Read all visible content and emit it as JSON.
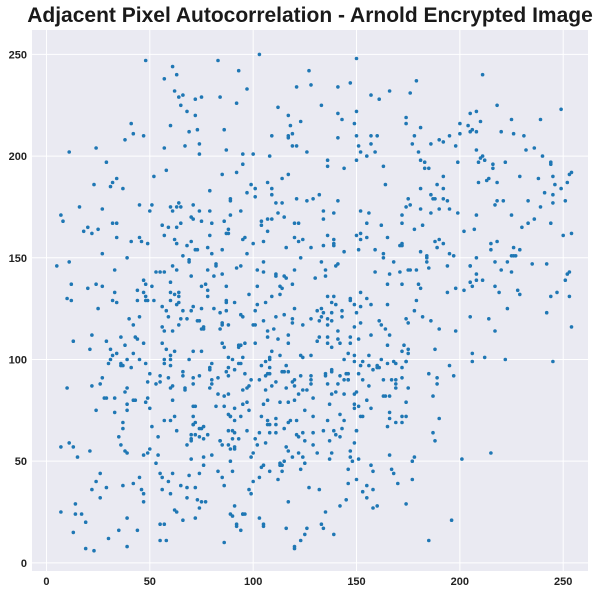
{
  "chart_data": {
    "type": "scatter",
    "title": "Adjacent Pixel Autocorrelation - Arnold Encrypted Image",
    "xlabel": "",
    "ylabel": "",
    "xlim": [
      -7,
      262
    ],
    "ylim": [
      -4,
      262
    ],
    "x_ticks": [
      0,
      50,
      100,
      150,
      200,
      250
    ],
    "y_ticks": [
      0,
      50,
      100,
      150,
      200,
      250
    ],
    "grid": true,
    "legend": "none",
    "colors": {
      "point": "#1f77b4",
      "plot_background": "#eaeaf2",
      "grid": "#ffffff"
    },
    "point_generation": {
      "seed": 20240611,
      "approx_point_count": 1000
    },
    "points": [
      [
        5,
        146
      ],
      [
        8,
        168
      ],
      [
        10,
        86
      ],
      [
        11,
        148
      ],
      [
        12,
        137
      ],
      [
        16,
        175
      ],
      [
        18,
        163
      ],
      [
        20,
        165
      ],
      [
        22,
        162
      ],
      [
        21,
        105
      ],
      [
        14,
        24
      ],
      [
        17,
        24
      ],
      [
        19,
        7
      ],
      [
        7,
        25
      ],
      [
        13,
        57
      ],
      [
        15,
        52
      ],
      [
        24,
        40
      ],
      [
        26,
        44
      ],
      [
        27,
        91
      ],
      [
        22,
        87
      ],
      [
        61,
        244
      ],
      [
        63,
        240
      ],
      [
        62,
        232
      ],
      [
        64,
        229
      ],
      [
        66,
        230
      ],
      [
        65,
        225
      ],
      [
        68,
        222
      ],
      [
        72,
        228
      ],
      [
        60,
        215
      ],
      [
        67,
        205
      ],
      [
        48,
        247
      ],
      [
        47,
        210
      ],
      [
        84,
        229
      ],
      [
        93,
        242
      ],
      [
        97,
        233
      ],
      [
        92,
        226
      ],
      [
        103,
        250
      ],
      [
        121,
        234
      ],
      [
        127,
        242
      ],
      [
        150,
        248
      ],
      [
        147,
        236
      ],
      [
        150,
        222
      ],
      [
        155,
        200
      ],
      [
        160,
        210
      ],
      [
        179,
        237
      ],
      [
        174,
        219
      ],
      [
        181,
        198
      ],
      [
        186,
        206
      ],
      [
        190,
        208
      ],
      [
        195,
        210
      ],
      [
        200,
        211
      ],
      [
        205,
        212
      ],
      [
        208,
        203
      ],
      [
        210,
        199
      ],
      [
        213,
        188
      ],
      [
        216,
        196
      ],
      [
        220,
        212
      ],
      [
        225,
        218
      ],
      [
        231,
        210
      ],
      [
        236,
        204
      ],
      [
        240,
        200
      ],
      [
        244,
        196
      ],
      [
        246,
        186
      ],
      [
        249,
        184
      ],
      [
        252,
        187
      ],
      [
        254,
        192
      ],
      [
        251,
        178
      ],
      [
        244,
        167
      ],
      [
        233,
        178
      ],
      [
        230,
        165
      ],
      [
        58,
        11
      ],
      [
        120,
        8
      ],
      [
        125,
        14
      ],
      [
        135,
        25
      ],
      [
        145,
        31
      ],
      [
        153,
        35
      ],
      [
        160,
        28
      ],
      [
        174,
        29
      ],
      [
        178,
        52
      ],
      [
        168,
        44
      ],
      [
        19,
        20
      ],
      [
        23,
        6
      ],
      [
        35,
        16
      ],
      [
        37,
        66
      ],
      [
        39,
        78
      ],
      [
        43,
        80
      ],
      [
        41,
        158
      ],
      [
        45,
        176
      ],
      [
        51,
        176
      ],
      [
        56,
        166
      ],
      [
        38,
        208
      ],
      [
        41,
        216
      ],
      [
        42,
        211
      ],
      [
        46,
        158
      ],
      [
        52,
        190
      ],
      [
        55,
        143
      ],
      [
        60,
        133
      ],
      [
        64,
        117
      ],
      [
        66,
        94
      ],
      [
        70,
        60
      ],
      [
        73,
        31
      ],
      [
        75,
        66
      ],
      [
        76,
        52
      ],
      [
        80,
        90
      ],
      [
        84,
        60
      ],
      [
        86,
        38
      ],
      [
        90,
        45
      ],
      [
        92,
        18
      ],
      [
        95,
        24
      ],
      [
        99,
        34
      ],
      [
        102,
        58
      ],
      [
        104,
        72
      ],
      [
        107,
        93
      ],
      [
        111,
        64
      ],
      [
        114,
        48
      ],
      [
        117,
        30
      ],
      [
        120,
        80
      ],
      [
        123,
        102
      ],
      [
        126,
        85
      ],
      [
        128,
        120
      ],
      [
        130,
        140
      ],
      [
        133,
        125
      ],
      [
        136,
        108
      ],
      [
        138,
        95
      ],
      [
        141,
        88
      ],
      [
        144,
        70
      ],
      [
        147,
        55
      ],
      [
        149,
        102
      ],
      [
        152,
        118
      ],
      [
        155,
        130
      ],
      [
        157,
        112
      ],
      [
        160,
        96
      ],
      [
        163,
        82
      ],
      [
        166,
        74
      ],
      [
        169,
        90
      ],
      [
        172,
        104
      ],
      [
        175,
        118
      ],
      [
        178,
        124
      ],
      [
        181,
        135
      ],
      [
        184,
        148
      ]
    ]
  }
}
